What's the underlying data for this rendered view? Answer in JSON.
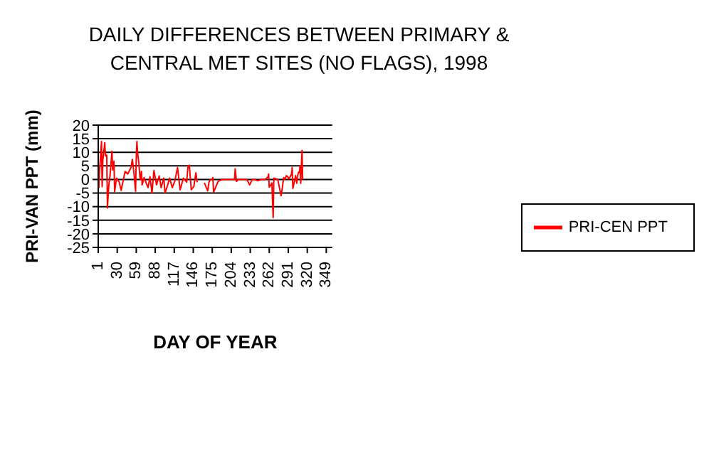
{
  "chart_data": {
    "type": "line",
    "title": "DAILY DIFFERENCES BETWEEN PRIMARY &\nCENTRAL MET SITES (NO FLAGS), 1998",
    "xlabel": "DAY OF YEAR",
    "ylabel": "PRI-VAN PPT (mm)",
    "x": [
      1,
      2,
      3,
      6,
      7,
      8,
      11,
      12,
      14,
      15,
      17,
      19,
      22,
      23,
      25,
      26,
      29,
      33,
      36,
      42,
      46,
      51,
      53,
      55,
      58,
      59,
      60,
      61,
      63,
      65,
      67,
      68,
      71,
      77,
      80,
      83,
      86,
      90,
      94,
      97,
      101,
      103,
      107,
      110,
      114,
      118,
      122,
      126,
      131,
      136,
      138,
      140,
      143,
      147,
      150,
      152,
      157,
      163,
      168,
      170,
      172,
      175,
      176,
      177,
      184,
      190,
      205,
      209,
      210,
      212,
      215,
      228,
      232,
      236,
      240,
      244,
      250,
      256,
      260,
      261,
      262,
      266,
      267,
      268,
      269,
      275,
      280,
      282,
      284,
      286,
      288,
      290,
      292,
      296,
      297,
      298,
      300,
      302,
      304,
      305,
      307,
      308,
      309,
      310,
      312,
      313
    ],
    "series": [
      {
        "name": "PRI-CEN PPT",
        "color": "#ff0000",
        "values": [
          7.4,
          -3,
          2.7,
          14,
          -2.6,
          7,
          13.5,
          8.6,
          9,
          -10.5,
          -2.6,
          1.6,
          10.4,
          3.5,
          6.7,
          -4.5,
          0.5,
          -1,
          -4,
          3,
          2,
          4.4,
          7.4,
          3.5,
          -4.3,
          7.9,
          14,
          10,
          6,
          0,
          3,
          -2,
          0.7,
          -3,
          1,
          -5,
          3.3,
          -2,
          1.3,
          -3,
          0.5,
          -5,
          -2,
          0.5,
          -3,
          -0.5,
          4.4,
          -3.8,
          0.5,
          -1,
          4.9,
          5.3,
          -3.8,
          -2.5,
          2.5,
          -1,
          null,
          -1.2,
          -4.2,
          -1,
          0,
          0,
          0.7,
          -4.7,
          -0.7,
          0,
          0,
          0,
          3.9,
          -0.7,
          0,
          0,
          -2,
          0,
          0,
          -0.5,
          0,
          0,
          1,
          2,
          -2.9,
          -1.3,
          -8.5,
          -14,
          0.5,
          0,
          -6,
          -3,
          0.7,
          0,
          1.4,
          1,
          0.2,
          2,
          4.4,
          -3.3,
          -1.2,
          1.4,
          -1.4,
          1.3,
          2.8,
          2.5,
          4.9,
          -1.4,
          10.7,
          0
        ]
      }
    ],
    "xlim": [
      1,
      358
    ],
    "xticks": [
      1,
      30,
      59,
      88,
      117,
      146,
      175,
      204,
      233,
      262,
      291,
      320,
      349
    ],
    "ylim": [
      -25,
      20
    ],
    "yticks": [
      -25,
      -20,
      -15,
      -10,
      -5,
      0,
      5,
      10,
      15,
      20
    ],
    "grid": "y",
    "legend": "right",
    "marker": "none",
    "line_style": "solid"
  }
}
